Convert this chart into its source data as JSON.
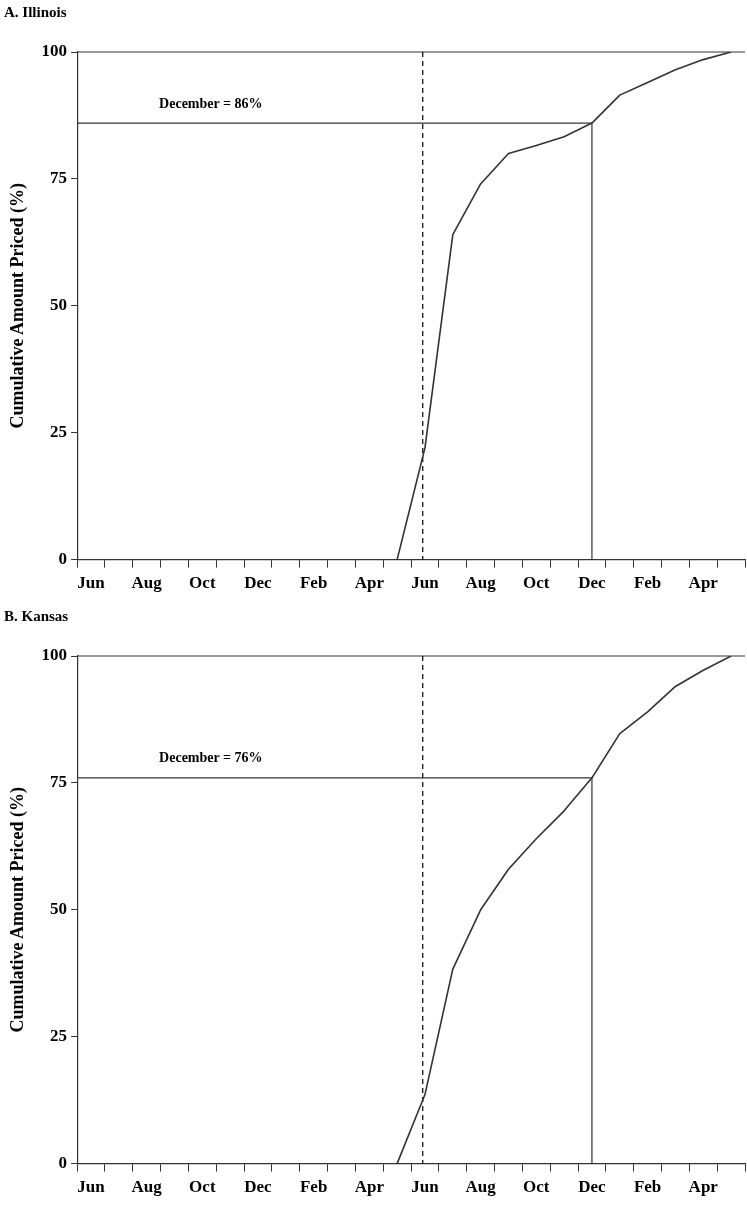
{
  "chart_data": [
    {
      "type": "line",
      "title": "A. Illinois",
      "ylabel": "Cumulative Amount Priced (%)",
      "categories": [
        "Jun",
        null,
        "Aug",
        null,
        "Oct",
        null,
        "Dec",
        null,
        "Feb",
        null,
        "Apr",
        null,
        "Jun",
        null,
        "Aug",
        null,
        "Oct",
        null,
        "Dec",
        null,
        "Feb",
        null,
        "Apr",
        null
      ],
      "series": [
        {
          "color": "#333333",
          "values": [
            null,
            null,
            null,
            null,
            null,
            null,
            null,
            null,
            null,
            null,
            null,
            0,
            22,
            64,
            74,
            80,
            81.6,
            83.3,
            86,
            91.5,
            94,
            96.5,
            98.5,
            100
          ]
        }
      ],
      "ylim": [
        0,
        100
      ],
      "yticks": [
        0,
        25,
        50,
        75,
        100
      ],
      "ref_lines": [
        {
          "axis": "y",
          "value": 86,
          "line_style": "solid",
          "color": "#333333"
        }
      ],
      "annotations": [
        {
          "text": "December = 86%",
          "y": 86
        }
      ],
      "grid": false,
      "legend": false,
      "marker": "none",
      "line_style": "solid"
    },
    {
      "type": "line",
      "title": "B. Kansas",
      "ylabel": "Cumulative Amount Priced (%)",
      "categories": [
        "Jun",
        null,
        "Aug",
        null,
        "Oct",
        null,
        "Dec",
        null,
        "Feb",
        null,
        "Apr",
        null,
        "Jun",
        null,
        "Aug",
        null,
        "Oct",
        null,
        "Dec",
        null,
        "Feb",
        null,
        "Apr",
        null
      ],
      "series": [
        {
          "color": "#333333",
          "values": [
            null,
            null,
            null,
            null,
            null,
            null,
            null,
            null,
            null,
            null,
            null,
            0,
            13.6,
            38.3,
            50,
            58,
            64,
            69.5,
            76,
            84.7,
            89,
            94,
            97.2,
            100
          ]
        }
      ],
      "ylim": [
        0,
        100
      ],
      "yticks": [
        0,
        25,
        50,
        75,
        100
      ],
      "ref_lines": [
        {
          "axis": "y",
          "value": 76,
          "line_style": "solid",
          "color": "#333333"
        }
      ],
      "annotations": [
        {
          "text": "December = 76%",
          "y": 76
        }
      ],
      "grid": false,
      "legend": false,
      "marker": "none",
      "line_style": "solid"
    }
  ]
}
